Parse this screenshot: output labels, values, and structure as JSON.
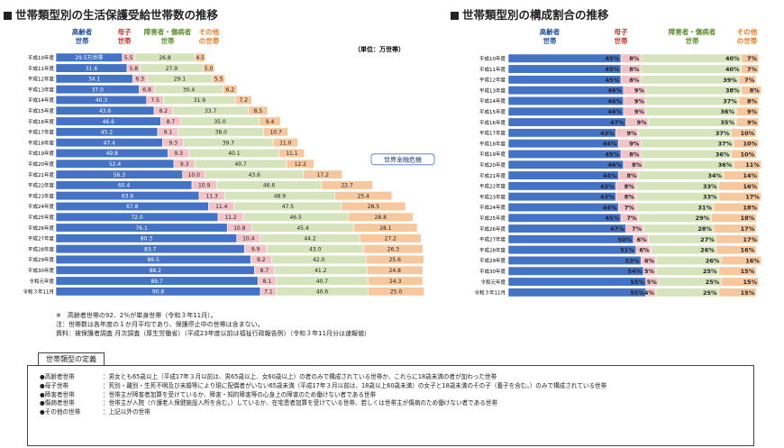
{
  "left_title": "世帯類型別の生活保護受給世帯数の推移",
  "right_title": "世帯類型別の構成割合の推移",
  "unit_label": "（単位：万世帯）",
  "callout": "世界金融危機",
  "colors": {
    "elderly": "#4472c4",
    "mother": "#f2c2c6",
    "disabled": "#d6e4bc",
    "other": "#f7c89d",
    "stroke": "#333333"
  },
  "chart_data": [
    {
      "type": "bar",
      "stacked": true,
      "orientation": "horizontal",
      "title": "世帯類型別の生活保護受給世帯数の推移",
      "unit": "万世帯",
      "series_headers": [
        "高齢者\n世帯",
        "母子\n世帯",
        "障害者・傷病者\n世帯",
        "その他\nの世帯"
      ],
      "categories": [
        "平成10年度",
        "平成11年度",
        "平成12年度",
        "平成13年度",
        "平成14年度",
        "平成15年度",
        "平成16年度",
        "平成17年度",
        "平成18年度",
        "平成19年度",
        "平成20年度",
        "平成21年度",
        "平成22年度",
        "平成23年度",
        "平成24年度",
        "平成25年度",
        "平成26年度",
        "平成27年度",
        "平成28年度",
        "平成29年度",
        "平成30年度",
        "令和元年度",
        "令和３年11月"
      ],
      "series": [
        {
          "name": "高齢者世帯",
          "values": [
            29.5,
            31.6,
            34.1,
            37.0,
            40.3,
            43.6,
            46.6,
            45.2,
            47.4,
            49.8,
            52.4,
            56.3,
            60.4,
            63.6,
            67.8,
            72.0,
            76.1,
            80.3,
            83.7,
            86.5,
            88.2,
            89.7,
            90.8
          ]
        },
        {
          "name": "母子世帯",
          "values": [
            5.5,
            5.8,
            6.3,
            6.8,
            7.5,
            8.2,
            8.7,
            9.1,
            9.3,
            9.3,
            9.3,
            10.0,
            10.9,
            11.3,
            11.4,
            11.2,
            10.8,
            10.4,
            9.9,
            9.2,
            8.7,
            8.1,
            7.1
          ]
        },
        {
          "name": "障害者・傷病者世帯",
          "values": [
            26.8,
            27.9,
            29.1,
            30.4,
            31.9,
            33.7,
            35.0,
            38.0,
            39.7,
            40.1,
            40.7,
            43.6,
            46.6,
            48.9,
            47.5,
            46.5,
            45.4,
            44.2,
            43.0,
            42.0,
            41.2,
            40.7,
            40.6
          ]
        },
        {
          "name": "その他の世帯",
          "values": [
            4.5,
            5.0,
            5.5,
            6.2,
            7.2,
            8.5,
            9.4,
            10.7,
            11.0,
            11.1,
            12.2,
            17.2,
            22.7,
            25.4,
            28.5,
            28.8,
            28.1,
            27.2,
            26.3,
            25.6,
            24.8,
            24.3,
            25.0
          ]
        }
      ],
      "value_labels": {
        "平成10年度": "29.5万世帯"
      }
    },
    {
      "type": "bar",
      "stacked": true,
      "orientation": "horizontal",
      "title": "世帯類型別の構成割合の推移",
      "unit": "%",
      "series_headers": [
        "高齢者\n世帯",
        "母子\n世帯",
        "障害者・傷病者\n世帯",
        "その他\nの世帯"
      ],
      "categories": [
        "平成10年度",
        "平成11年度",
        "平成12年度",
        "平成13年度",
        "平成14年度",
        "平成15年度",
        "平成16年度",
        "平成17年度",
        "平成18年度",
        "平成19年度",
        "平成20年度",
        "平成21年度",
        "平成22年度",
        "平成23年度",
        "平成24年度",
        "平成25年度",
        "平成26年度",
        "平成27年度",
        "平成28年度",
        "平成29年度",
        "平成30年度",
        "令和元年度",
        "令和３年11月"
      ],
      "series": [
        {
          "name": "高齢者世帯",
          "values": [
            45,
            45,
            45,
            46,
            46,
            46,
            47,
            43,
            44,
            45,
            46,
            44,
            43,
            43,
            44,
            45,
            47,
            50,
            51,
            53,
            54,
            55,
            55
          ]
        },
        {
          "name": "母子世帯",
          "values": [
            8,
            8,
            8,
            9,
            9,
            9,
            9,
            9,
            9,
            8,
            8,
            8,
            8,
            8,
            7,
            7,
            7,
            6,
            6,
            6,
            5,
            5,
            4
          ]
        },
        {
          "name": "障害者・傷病者世帯",
          "values": [
            40,
            40,
            39,
            38,
            37,
            36,
            35,
            37,
            37,
            36,
            36,
            34,
            33,
            33,
            31,
            29,
            28,
            27,
            26,
            26,
            25,
            25,
            25
          ]
        },
        {
          "name": "その他の世帯",
          "values": [
            7,
            7,
            7,
            8,
            8,
            9,
            9,
            10,
            10,
            10,
            11,
            14,
            16,
            17,
            18,
            18,
            17,
            17,
            16,
            16,
            15,
            15,
            15
          ]
        }
      ]
    }
  ],
  "notes": [
    "※　高齢者世帯の92．2％が単身世帯（令和３年11月）。",
    "注：世帯数は各年度の１か月平均であり、保護停止中の世帯は含まない。",
    "資料：被保護者調査 月次調査（厚生労働省）（平成23年度以前は福祉行政報告例）（令和３年11月分は速報値）"
  ],
  "definitions_title": "世帯類型の定義",
  "definitions": [
    {
      "key": "●高齢者世帯",
      "text": "：男女とも65歳以上（平成17年３月以前は、男65歳以上、女60歳以上）の者のみで構成されている世帯か、これらに18歳未満の者が加わった世帯"
    },
    {
      "key": "●母子世帯",
      "text": "：死別・離別・生死不明及び未婚等により現に配偶者がいない65歳未満（平成17年３月以前は、18歳以上60歳未満）の女子と18歳未満のその子（養子を含む。）のみで構成されている世帯"
    },
    {
      "key": "●障害者世帯",
      "text": "：世帯主が障害者加算を受けているか、障害・知的障害等の心身上の障害のため働けない者である世帯"
    },
    {
      "key": "●傷病者世帯",
      "text": "：世帯主が入院（介護老人保健施設入所を含む。）しているか、在宅患者加算を受けている世帯、若しくは世帯主が傷病のため働けない者である世帯"
    },
    {
      "key": "●その他の世帯",
      "text": "：上記以外の世帯"
    }
  ]
}
